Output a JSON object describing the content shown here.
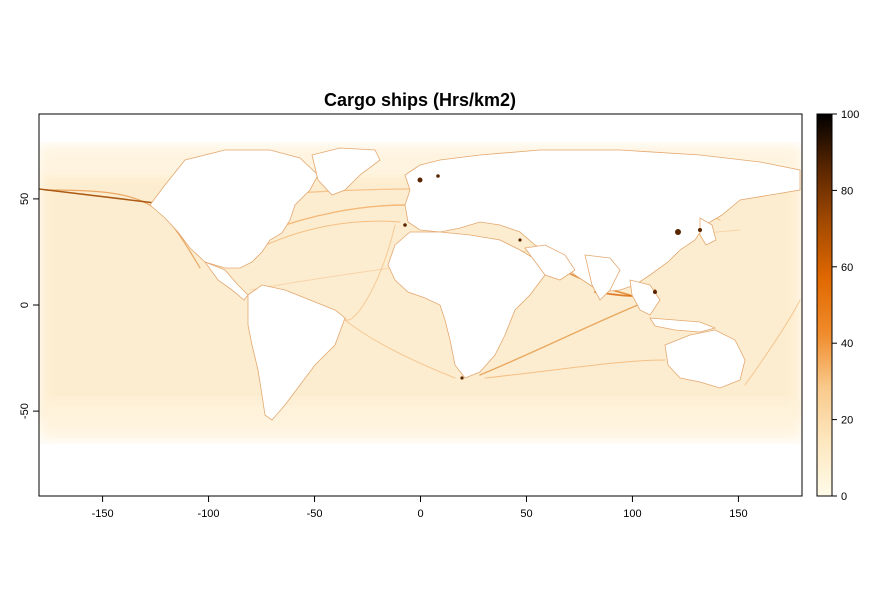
{
  "chart_data": {
    "type": "heatmap",
    "title": "Cargo ships (Hrs/km2)",
    "xlabel": "",
    "ylabel": "",
    "xlim": [
      -180,
      180
    ],
    "ylim": [
      -90,
      90
    ],
    "x_ticks": [
      -150,
      -100,
      -50,
      0,
      50,
      100,
      150
    ],
    "y_ticks": [
      -50,
      0,
      50
    ],
    "colorbar": {
      "range": [
        0,
        100
      ],
      "ticks": [
        0,
        20,
        40,
        60,
        80,
        100
      ],
      "colors": [
        "#fffbe8",
        "#fde7bf",
        "#f9c98a",
        "#f08a2a",
        "#e06800",
        "#a34a00",
        "#5a2600",
        "#000000"
      ]
    },
    "colors": {
      "land": "#ffffff",
      "ocean_base": "#fde9c2",
      "route": "#e07a1a",
      "hotspot": "#8a3c00"
    }
  }
}
